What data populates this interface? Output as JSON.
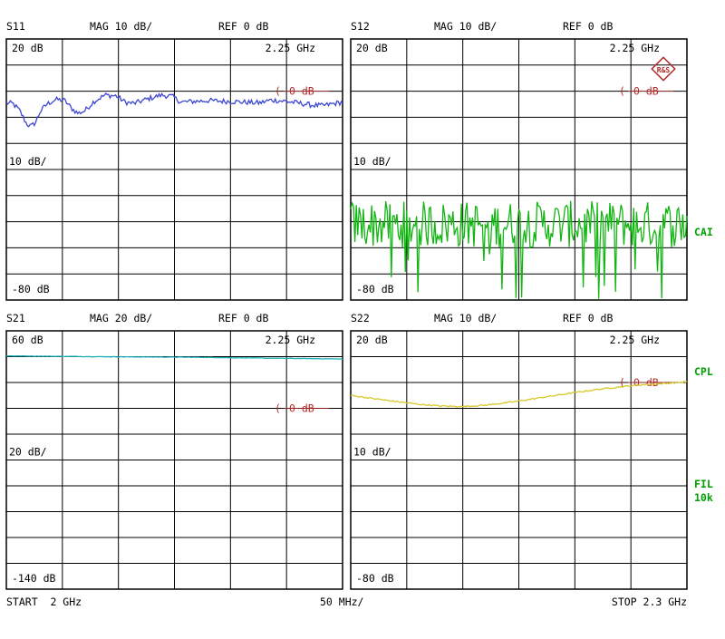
{
  "logo_text": "R&S",
  "colors": {
    "s11": "#3c46d2",
    "s12": "#12b512",
    "s21": "#1ab0b8",
    "s22": "#d8c82a",
    "reference": "#b42a2a",
    "side_labels": "#00a000"
  },
  "side_labels": {
    "cai": "CAI",
    "cpl": "CPL",
    "fil": "FIL",
    "fil_bw": "10k"
  },
  "footer": {
    "start": "START  2 GHz",
    "span": "50 MHz/",
    "stop": "STOP 2.3 GHz"
  },
  "chart_data": [
    {
      "type": "line",
      "param": "S11",
      "format": "MAG 10 dB/",
      "ref": "REF 0 dB",
      "top_label": "20 dB",
      "mid_label": "10 dB/",
      "bottom_label": "-80 dB",
      "marker_freq": "2.25 GHz",
      "ref_label": "0 dB",
      "ref_arrow": "(",
      "ylim": [
        -80,
        20
      ],
      "ref_value": 0,
      "xlim": [
        2.0,
        2.3
      ],
      "x_unit": "GHz",
      "y_unit": "dB",
      "series": [
        {
          "color": "#3c46d2",
          "noise": 1.0,
          "points": [
            [
              2.0,
              -4.5
            ],
            [
              2.006,
              -4.8
            ],
            [
              2.012,
              -7.5
            ],
            [
              2.018,
              -12.5
            ],
            [
              2.022,
              -13.5
            ],
            [
              2.026,
              -12
            ],
            [
              2.03,
              -8
            ],
            [
              2.036,
              -5
            ],
            [
              2.044,
              -3.2
            ],
            [
              2.052,
              -3.5
            ],
            [
              2.058,
              -6.5
            ],
            [
              2.064,
              -8.5
            ],
            [
              2.07,
              -7.5
            ],
            [
              2.078,
              -4
            ],
            [
              2.088,
              -1.5
            ],
            [
              2.098,
              -1.8
            ],
            [
              2.106,
              -4.2
            ],
            [
              2.114,
              -4.7
            ],
            [
              2.126,
              -3
            ],
            [
              2.138,
              -1.5
            ],
            [
              2.148,
              -2
            ],
            [
              2.156,
              -4.2
            ],
            [
              2.168,
              -3.9
            ],
            [
              2.18,
              -3.6
            ],
            [
              2.192,
              -3.8
            ],
            [
              2.204,
              -4
            ],
            [
              2.216,
              -4.3
            ],
            [
              2.226,
              -4.5
            ],
            [
              2.236,
              -3.4
            ],
            [
              2.248,
              -3.8
            ],
            [
              2.26,
              -4.5
            ],
            [
              2.272,
              -5.3
            ],
            [
              2.282,
              -5.6
            ],
            [
              2.292,
              -4.8
            ],
            [
              2.3,
              -4.2
            ]
          ]
        }
      ]
    },
    {
      "type": "line",
      "param": "S12",
      "format": "MAG 10 dB/",
      "ref": "REF 0 dB",
      "top_label": "20 dB",
      "mid_label": "10 dB/",
      "bottom_label": "-80 dB",
      "marker_freq": "2.25 GHz",
      "ref_label": "0 dB",
      "ref_arrow": "(",
      "ylim": [
        -80,
        20
      ],
      "ref_value": 0,
      "xlim": [
        2.0,
        2.3
      ],
      "x_unit": "GHz",
      "y_unit": "dB",
      "series": [
        {
          "color": "#12b512",
          "noise": 9.0,
          "points": [
            [
              2.0,
              -51
            ],
            [
              2.3,
              -51
            ]
          ]
        }
      ]
    },
    {
      "type": "line",
      "param": "S21",
      "format": "MAG 20 dB/",
      "ref": "REF 0 dB",
      "top_label": "60 dB",
      "mid_label": "20 dB/",
      "bottom_label": "-140 dB",
      "marker_freq": "2.25 GHz",
      "ref_label": "0 dB",
      "ref_arrow": "(",
      "ylim": [
        -140,
        60
      ],
      "ref_value": 0,
      "xlim": [
        2.0,
        2.3
      ],
      "x_unit": "GHz",
      "y_unit": "dB",
      "series": [
        {
          "color": "#1ab0b8",
          "noise": 0.15,
          "points": [
            [
              2.0,
              40.6
            ],
            [
              2.08,
              40.0
            ],
            [
              2.16,
              39.6
            ],
            [
              2.22,
              39.0
            ],
            [
              2.26,
              38.6
            ],
            [
              2.3,
              38.2
            ]
          ]
        }
      ]
    },
    {
      "type": "line",
      "param": "S22",
      "format": "MAG 10 dB/",
      "ref": "REF 0 dB",
      "top_label": "20 dB",
      "mid_label": "10 dB/",
      "bottom_label": "-80 dB",
      "marker_freq": "2.25 GHz",
      "ref_label": "0 dB",
      "ref_arrow": "(",
      "ylim": [
        -80,
        20
      ],
      "ref_value": 0,
      "xlim": [
        2.0,
        2.3
      ],
      "x_unit": "GHz",
      "y_unit": "dB",
      "series": [
        {
          "color": "#d8c82a",
          "noise": 0.25,
          "points": [
            [
              2.0,
              -5
            ],
            [
              2.03,
              -6.8
            ],
            [
              2.06,
              -8.4
            ],
            [
              2.08,
              -9.1
            ],
            [
              2.1,
              -9.3
            ],
            [
              2.12,
              -8.8
            ],
            [
              2.14,
              -7.8
            ],
            [
              2.16,
              -6.5
            ],
            [
              2.18,
              -5.2
            ],
            [
              2.2,
              -3.9
            ],
            [
              2.22,
              -2.7
            ],
            [
              2.24,
              -1.7
            ],
            [
              2.26,
              -0.9
            ],
            [
              2.28,
              -0.4
            ],
            [
              2.3,
              0.3
            ]
          ]
        }
      ]
    }
  ]
}
